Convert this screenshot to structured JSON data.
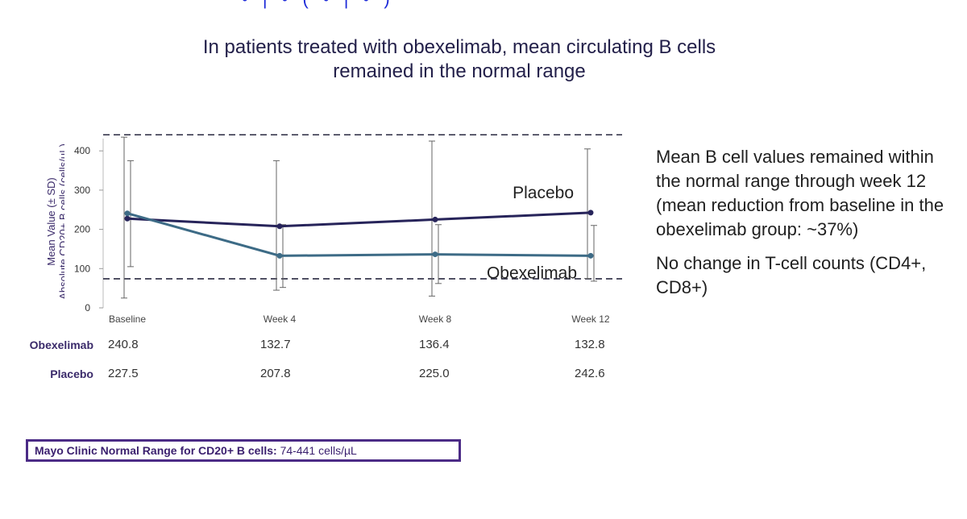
{
  "slide": {
    "title_line1": "In patients treated with obexelimab, mean circulating B cells",
    "title_line2": "remained in the normal range",
    "top_fragment": "• | • ( • | • )"
  },
  "side_text": {
    "paragraph1": "Mean B cell values remained within the normal range through week 12 (mean reduction from baseline in the obexelimab group: ~37%)",
    "paragraph2": "No change in T-cell counts (CD4+, CD8+)"
  },
  "table": {
    "rows": [
      {
        "label": "Obexelimab",
        "values": [
          "240.8",
          "132.7",
          "136.4",
          "132.8"
        ]
      },
      {
        "label": "Placebo",
        "values": [
          "227.5",
          "207.8",
          "225.0",
          "242.6"
        ]
      }
    ]
  },
  "footnote": {
    "label": "Mayo Clinic Normal Range for CD20+ B cells:",
    "value": "74-441 cells/µL"
  },
  "chart_data": {
    "type": "line",
    "title": "",
    "ylabel_line1": "Mean Value (± SD)",
    "ylabel_line2": "Absolute CD20+ B cells (cells/µL)",
    "xlabel": "",
    "categories": [
      "Baseline",
      "Week 4",
      "Week 8",
      "Week 12"
    ],
    "yticks": [
      0,
      100,
      200,
      300,
      400
    ],
    "ylim": [
      0,
      460
    ],
    "normal_range": [
      74,
      441
    ],
    "series": [
      {
        "name": "Placebo",
        "color": "#27245a",
        "values": [
          227.5,
          207.8,
          225.0,
          242.6
        ],
        "sd_low": [
          25,
          45,
          30,
          75
        ],
        "sd_high": [
          435,
          375,
          425,
          405
        ]
      },
      {
        "name": "Obexelimab",
        "color": "#3d6b86",
        "values": [
          240.8,
          132.7,
          136.4,
          132.8
        ],
        "sd_low": [
          105,
          52,
          62,
          68
        ],
        "sd_high": [
          375,
          212,
          212,
          210
        ]
      }
    ],
    "grid": false
  }
}
